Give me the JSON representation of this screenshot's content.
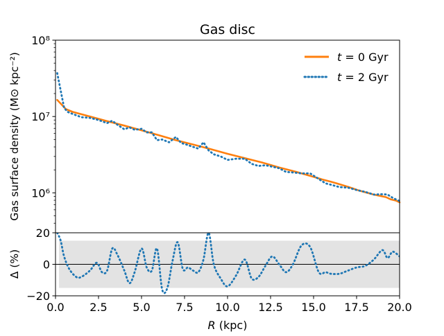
{
  "figure": {
    "title": "Gas disc"
  },
  "colors": {
    "t0": "#ff7f0e",
    "t2": "#1f77b4",
    "band": "#e3e3e3",
    "axis": "#000000"
  },
  "chart_data": [
    {
      "type": "line",
      "panel": "top",
      "title": "Gas disc",
      "xlabel": "",
      "ylabel": "Gas surface density (M⊙ kpc⁻²)",
      "yscale": "log",
      "xlim": [
        0,
        20
      ],
      "ylim": [
        300000,
        100000000
      ],
      "ytick_values": [
        1000000,
        10000000,
        100000000
      ],
      "ytick_labels": [
        "10⁶",
        "10⁷",
        "10⁸"
      ],
      "legend_position": "top-right",
      "series": [
        {
          "name": "t = 0 Gyr",
          "legend_var": "t",
          "legend_rest": " = 0 Gyr",
          "style": "solid",
          "x": [
            0.1,
            0.4,
            0.6,
            1.0,
            2.0,
            3.0,
            4.0,
            5.0,
            6.0,
            7.0,
            8.0,
            9.0,
            10.0,
            11.0,
            12.0,
            13.0,
            14.0,
            15.0,
            15.5,
            16.0,
            16.3,
            16.6,
            17.0,
            17.3,
            17.6,
            18.0,
            18.5,
            19.0,
            19.2,
            19.5,
            19.8,
            20.0
          ],
          "y": [
            16500000,
            14000000,
            12500000,
            11500000,
            10000000,
            8700000,
            7600000,
            6600000,
            5700000,
            4900000,
            4300000,
            3750000,
            3250000,
            2850000,
            2500000,
            2150000,
            1880000,
            1620000,
            1500000,
            1400000,
            1340000,
            1280000,
            1200000,
            1140000,
            1080000,
            1020000,
            950000,
            900000,
            880000,
            820000,
            790000,
            750000
          ]
        },
        {
          "name": "t = 2 Gyr",
          "legend_var": "t",
          "legend_rest": " = 2 Gyr",
          "style": "dotted",
          "x": [
            0.1,
            0.3,
            0.5,
            0.7,
            1.0,
            1.5,
            2.0,
            2.5,
            3.0,
            3.3,
            3.6,
            4.0,
            4.3,
            4.6,
            5.0,
            5.3,
            5.6,
            5.9,
            6.2,
            6.6,
            7.0,
            7.3,
            7.6,
            8.0,
            8.3,
            8.6,
            8.9,
            9.2,
            9.6,
            10.0,
            10.5,
            11.0,
            11.4,
            11.8,
            12.2,
            12.6,
            13.0,
            13.4,
            13.8,
            14.3,
            14.8,
            15.3,
            15.7,
            16.0,
            16.5,
            17.0,
            17.5,
            18.0,
            18.5,
            19.0,
            19.3,
            19.6,
            20.0
          ],
          "y": [
            37000000,
            22000000,
            13000000,
            11500000,
            10800000,
            9800000,
            9600000,
            9000000,
            8200000,
            8800000,
            7800000,
            6800000,
            7200000,
            6700000,
            6900000,
            6200000,
            6200000,
            4900000,
            5000000,
            4600000,
            5400000,
            4500000,
            4300000,
            4000000,
            3800000,
            4600000,
            3600000,
            3200000,
            3000000,
            2700000,
            2800000,
            2800000,
            2400000,
            2250000,
            2300000,
            2200000,
            2100000,
            1880000,
            1850000,
            1800000,
            1800000,
            1520000,
            1330000,
            1280000,
            1190000,
            1170000,
            1090000,
            1030000,
            950000,
            960000,
            950000,
            860000,
            780000
          ]
        }
      ]
    },
    {
      "type": "line",
      "panel": "bottom",
      "title": "",
      "xlabel_var": "R",
      "xlabel_rest": " (kpc)",
      "ylabel": "Δ (%)",
      "xlim": [
        0,
        20
      ],
      "ylim": [
        -20,
        20
      ],
      "xtick_values": [
        0,
        2.5,
        5,
        7.5,
        10,
        12.5,
        15,
        17.5,
        20
      ],
      "xtick_labels": [
        "0.0",
        "2.5",
        "5.0",
        "7.5",
        "10.0",
        "12.5",
        "15.0",
        "17.5",
        "20.0"
      ],
      "ytick_values": [
        -20,
        0,
        20
      ],
      "ytick_labels": [
        "−20",
        "0",
        "20"
      ],
      "band": [
        -15,
        15
      ],
      "reference_line": 0,
      "series": [
        {
          "name": "Δ (t = 2 Gyr vs t = 0 Gyr)",
          "style": "dotted",
          "x": [
            0.1,
            0.3,
            0.5,
            0.8,
            1.2,
            1.5,
            2.0,
            2.4,
            2.7,
            3.0,
            3.3,
            3.6,
            4.0,
            4.3,
            4.6,
            5.0,
            5.3,
            5.6,
            5.9,
            6.2,
            6.5,
            6.8,
            7.1,
            7.4,
            7.7,
            8.0,
            8.3,
            8.6,
            8.9,
            9.2,
            9.6,
            10.0,
            10.5,
            11.0,
            11.4,
            11.8,
            12.2,
            12.6,
            13.0,
            13.4,
            13.8,
            14.3,
            14.8,
            15.3,
            15.7,
            16.0,
            16.5,
            17.0,
            17.5,
            18.0,
            18.5,
            19.0,
            19.3,
            19.6,
            20.0
          ],
          "y": [
            20,
            15,
            5,
            -3,
            -8,
            -8,
            -4,
            1,
            -5,
            -4,
            10,
            6,
            -4,
            -12,
            -5,
            10,
            -2,
            -4,
            10,
            -16,
            -15,
            2,
            14,
            -3,
            -2,
            -4,
            -5,
            3,
            20,
            0,
            -9,
            -14,
            -7,
            3,
            -9,
            -8,
            -1,
            5,
            0,
            -5,
            0,
            12,
            11,
            -5,
            -5,
            -6,
            -6,
            -4,
            -2,
            -1,
            3,
            9,
            4,
            8,
            5
          ]
        }
      ]
    }
  ]
}
